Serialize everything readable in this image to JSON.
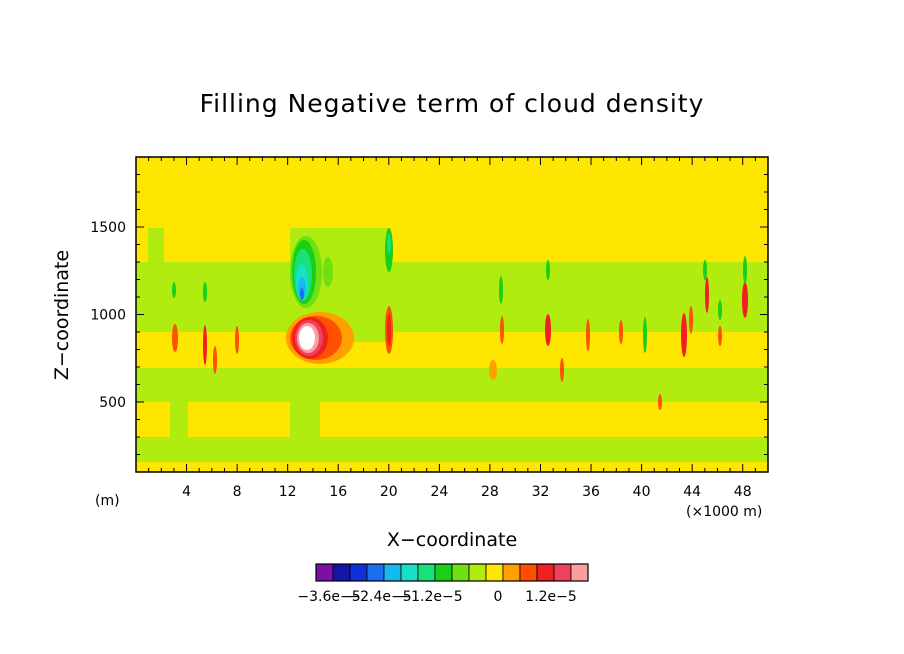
{
  "chart_data": {
    "type": "heatmap",
    "title": "Filling Negative term of cloud density",
    "xlabel": "X−coordinate",
    "ylabel": "Z−coordinate",
    "x_unit_label": "(m)",
    "x_scale_label": "(×1000 m)",
    "xlim": [
      0,
      50
    ],
    "ylim": [
      100,
      1900
    ],
    "x_ticks": [
      "4",
      "8",
      "12",
      "16",
      "20",
      "24",
      "28",
      "32",
      "36",
      "40",
      "44",
      "48"
    ],
    "y_ticks": [
      "500",
      "1000",
      "1500"
    ],
    "colorbar": {
      "colors": [
        "#7a10a8",
        "#1414a8",
        "#1030d8",
        "#1a6ef0",
        "#18b8f0",
        "#18e0c8",
        "#18e07a",
        "#18d018",
        "#70e010",
        "#b0ec10",
        "#ffe600",
        "#ffa000",
        "#ff5000",
        "#f02020",
        "#f04060",
        "#f8a0a0"
      ],
      "tick_labels": [
        "−3.6e−5",
        "−2.4e−5",
        "−1.2e−5",
        "0",
        "1.2e−5"
      ]
    },
    "background_level": 0,
    "features": [
      {
        "x": 13.2,
        "z": 870,
        "value": 5e-05,
        "note": "strong positive core"
      },
      {
        "x": 13.4,
        "z": 1200,
        "value": -3e-05,
        "note": "negative core"
      },
      {
        "x": 20.0,
        "z": 920,
        "value": 1.5e-05
      },
      {
        "x": 20.0,
        "z": 1350,
        "value": -1.2e-05
      },
      {
        "x": 48.0,
        "z": 1090,
        "value": 1.5e-05
      }
    ]
  }
}
